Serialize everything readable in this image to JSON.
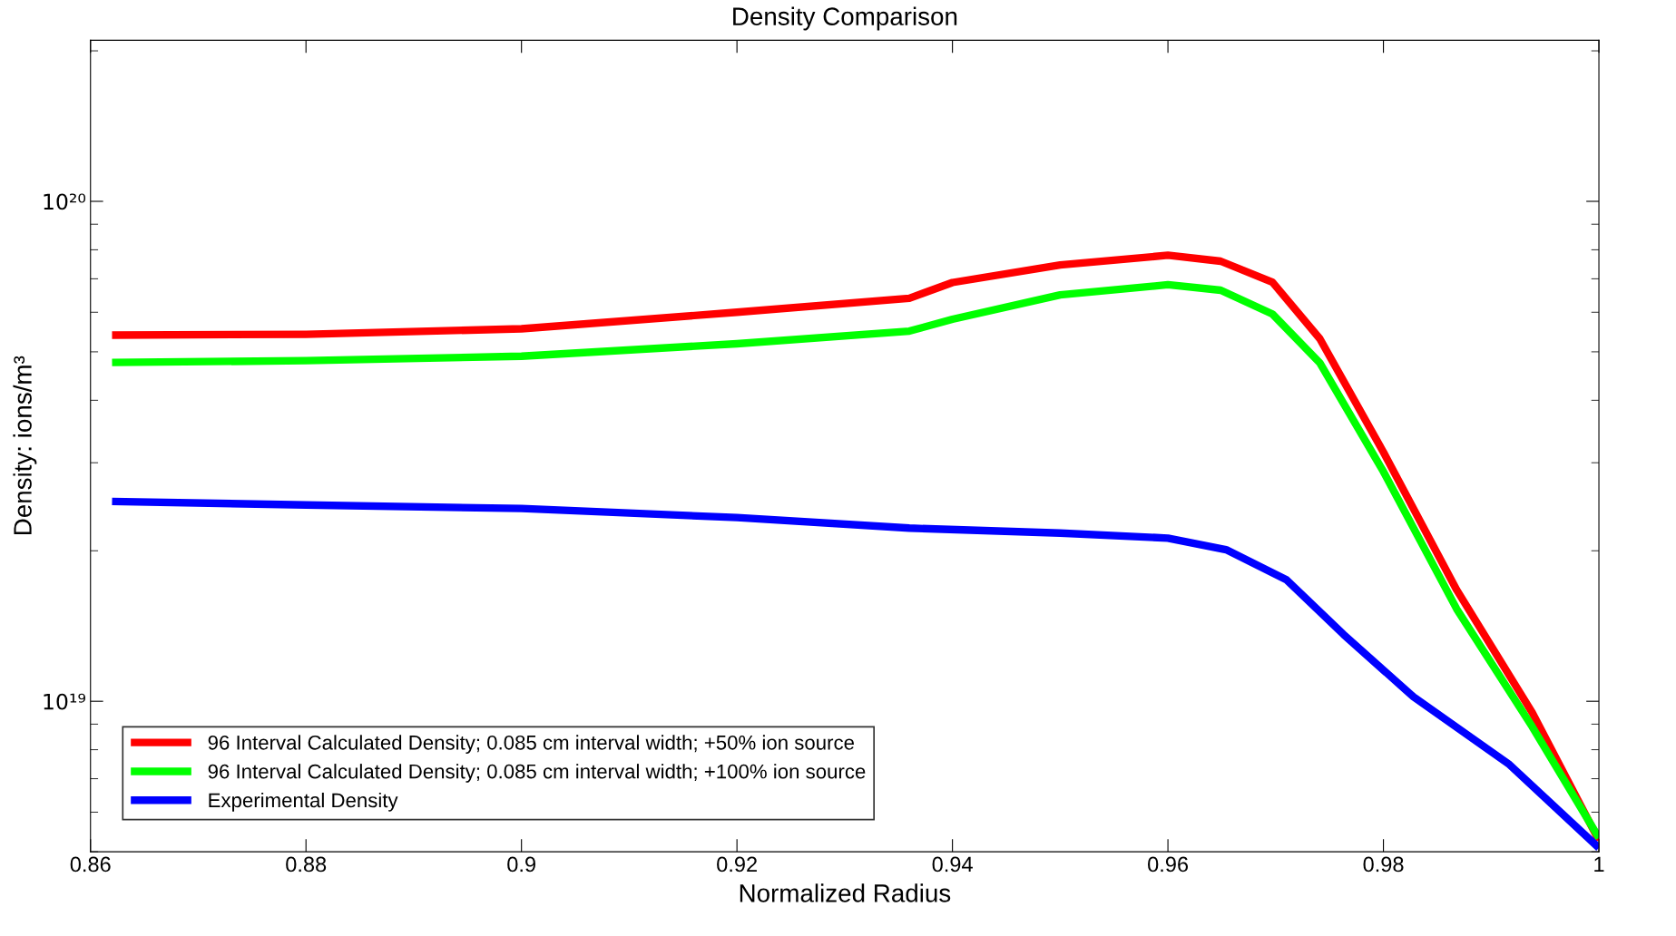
{
  "chart_data": {
    "type": "line",
    "title": "Density Comparison",
    "xlabel": "Normalized Radius",
    "ylabel": "Density: ions/m³",
    "log": "y",
    "xlim": [
      0.86,
      1.0
    ],
    "xticks": [
      0.86,
      0.88,
      0.9,
      0.92,
      0.94,
      0.96,
      0.98,
      1
    ],
    "ylim": [
      5e+18,
      2.1e+20
    ],
    "yticks": [
      {
        "value": 1e+19,
        "label": "10¹⁹"
      },
      {
        "value": 1e+20,
        "label": "10²⁰"
      }
    ],
    "legend": "bottom left",
    "grid": false,
    "line_style": "solid",
    "marker": "none",
    "series": [
      {
        "name": "96 Interval Calculated Density; 0.085 cm interval width; +50% ion source",
        "color": "#ff0000",
        "x": [
          0.862,
          0.88,
          0.9,
          0.92,
          0.936,
          0.94,
          0.95,
          0.96,
          0.9649,
          0.9697,
          0.9741,
          0.98,
          0.9868,
          0.9938,
          1.0
        ],
        "values": [
          5.4e+19,
          5.42e+19,
          5.56e+19,
          6e+19,
          6.4e+19,
          6.88e+19,
          7.46e+19,
          7.8e+19,
          7.59e+19,
          6.89e+19,
          5.31e+19,
          3.15e+19,
          1.67e+19,
          9.5e+18,
          5.27e+18
        ]
      },
      {
        "name": "96 Interval Calculated Density; 0.085 cm interval width; +100% ion source",
        "color": "#00ff00",
        "x": [
          0.862,
          0.88,
          0.9,
          0.92,
          0.936,
          0.94,
          0.95,
          0.96,
          0.9649,
          0.9697,
          0.9741,
          0.98,
          0.9868,
          0.9938,
          1.0
        ],
        "values": [
          4.76e+19,
          4.8e+19,
          4.9e+19,
          5.19e+19,
          5.5e+19,
          5.81e+19,
          6.5e+19,
          6.81e+19,
          6.64e+19,
          5.95e+19,
          4.75e+19,
          2.88e+19,
          1.53e+19,
          8.9e+18,
          5.33e+18
        ]
      },
      {
        "name": "Experimental Density",
        "color": "#0000ff",
        "x": [
          0.862,
          0.88,
          0.9,
          0.92,
          0.936,
          0.95,
          0.96,
          0.9654,
          0.971,
          0.9763,
          0.9828,
          0.9916,
          1.0
        ],
        "values": [
          2.51e+19,
          2.47e+19,
          2.43e+19,
          2.33e+19,
          2.22e+19,
          2.17e+19,
          2.12e+19,
          2.01e+19,
          1.75e+19,
          1.36e+19,
          1.02e+19,
          7.5e+18,
          5.09e+18
        ]
      }
    ]
  }
}
